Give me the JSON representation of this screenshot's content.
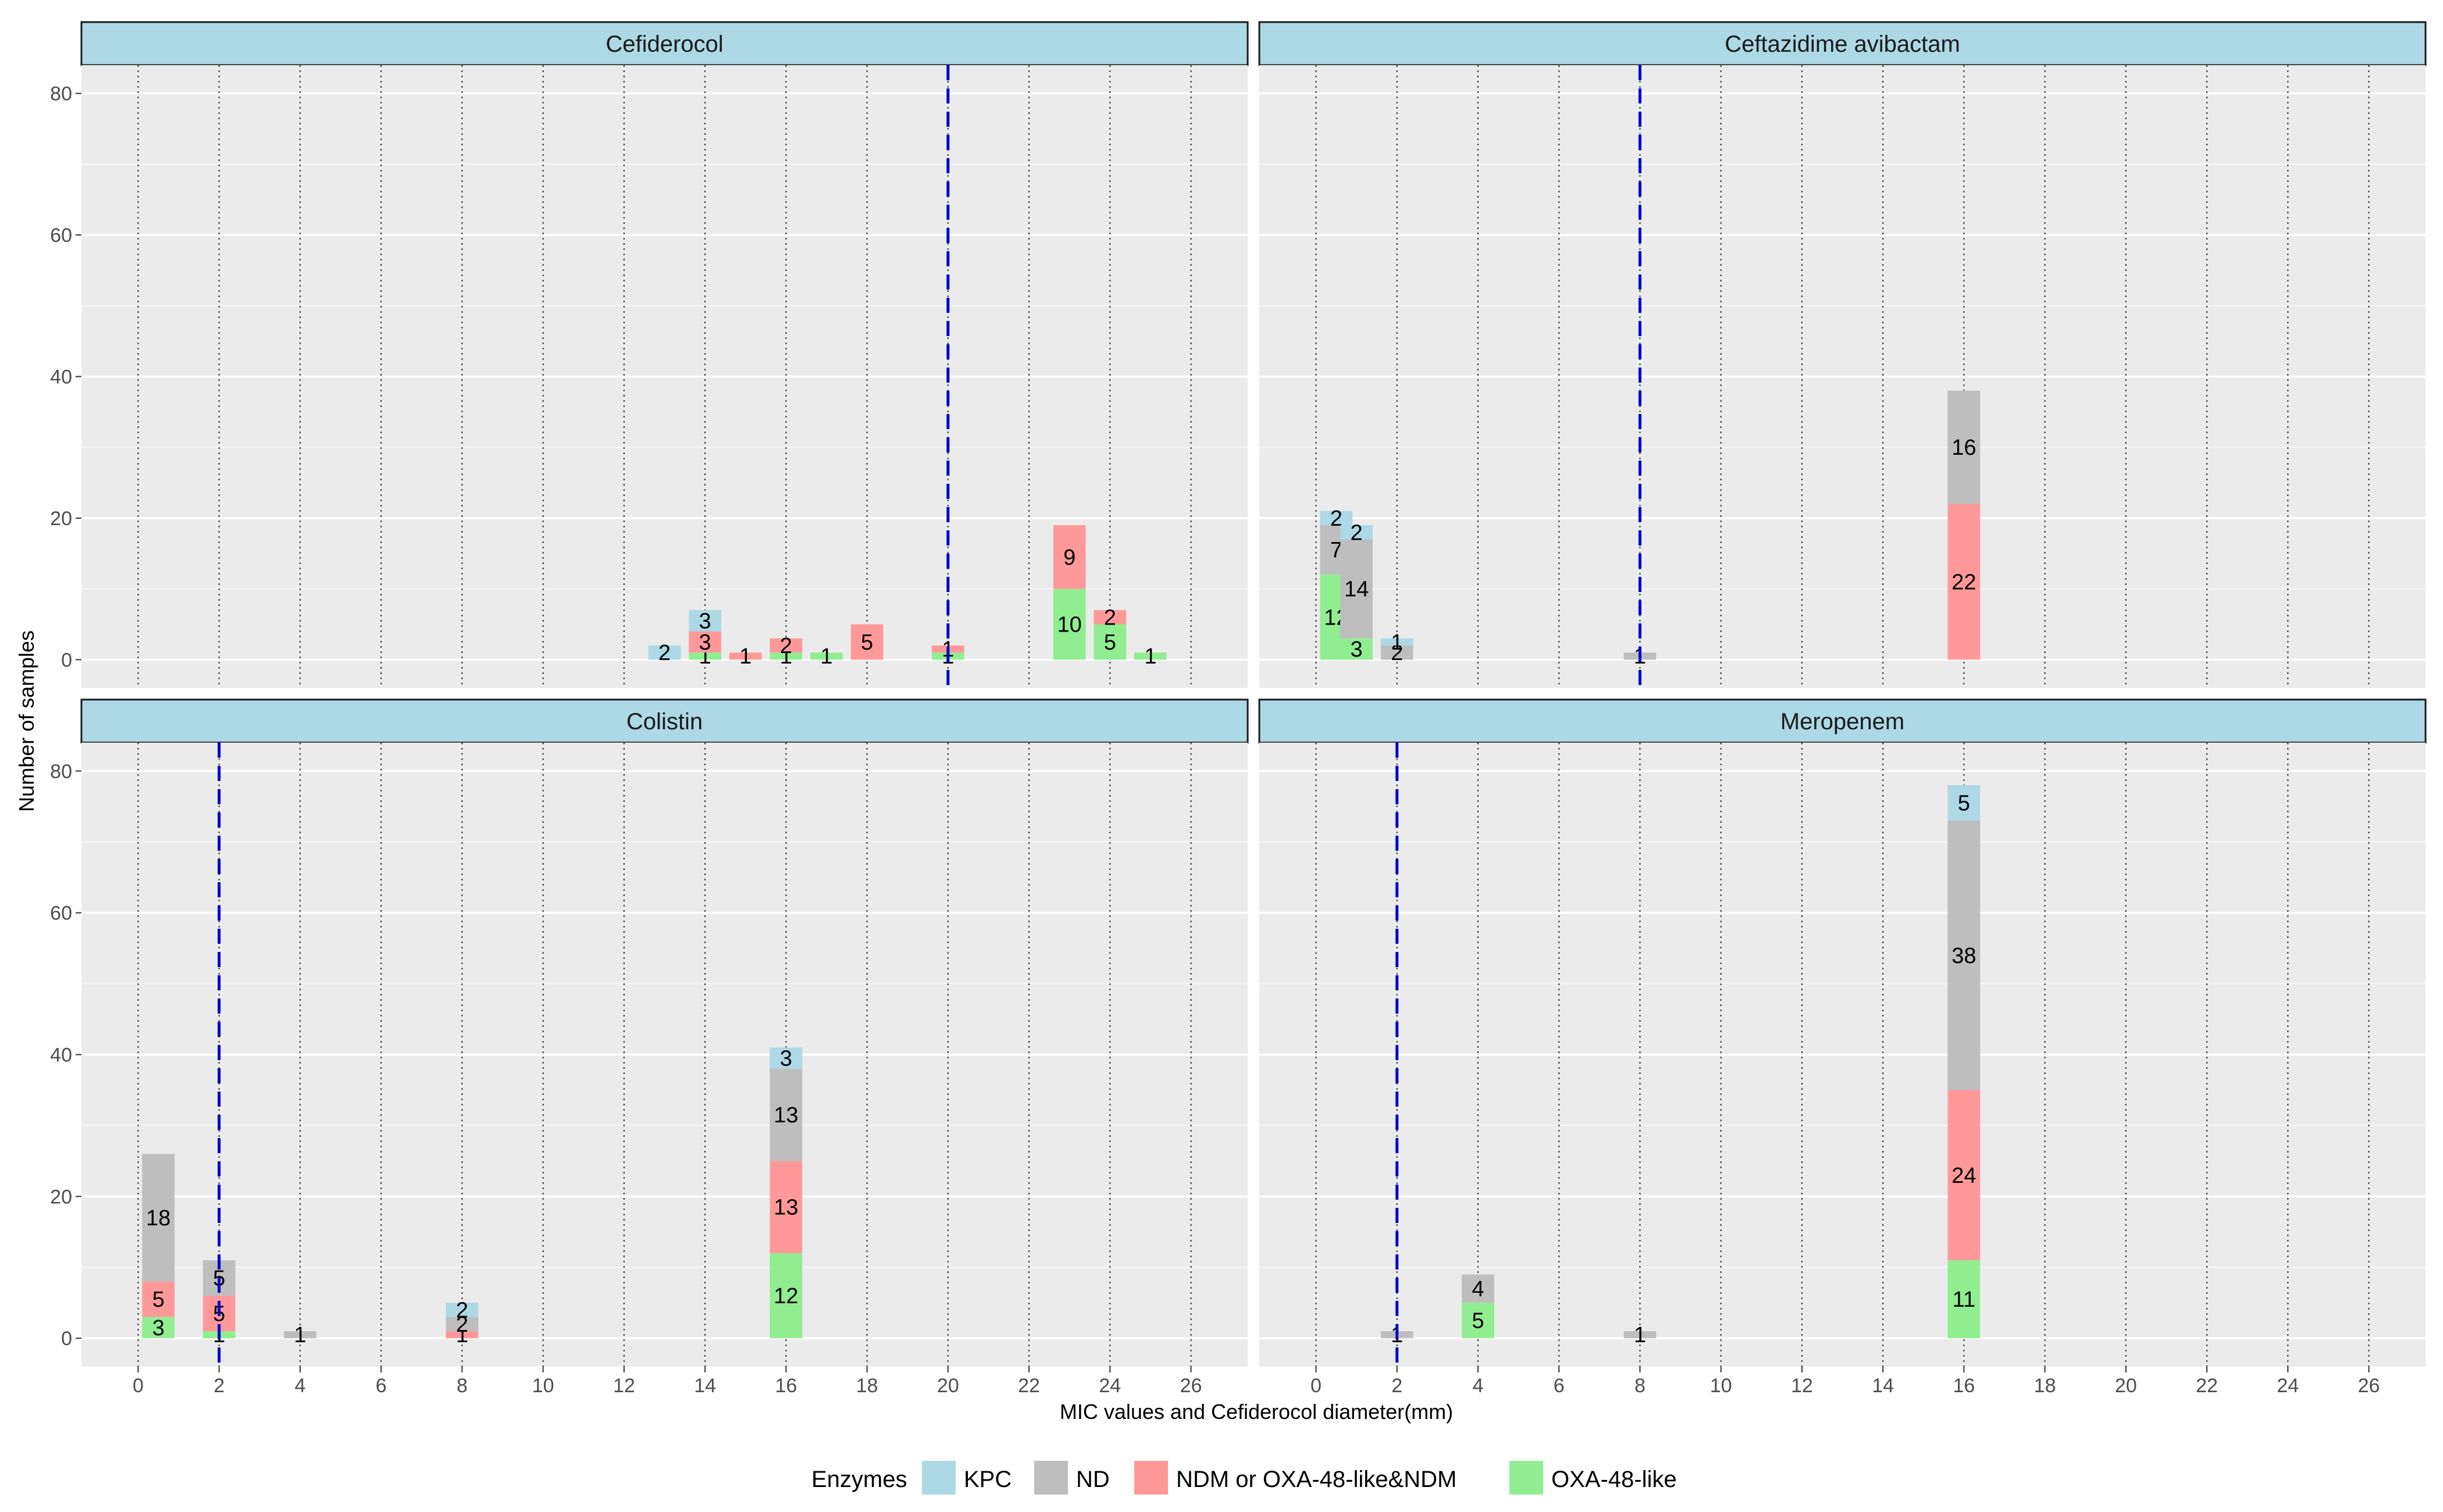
{
  "chart_data": {
    "type": "bar",
    "stacked": true,
    "xlabel": "MIC values and Cefiderocol diameter(mm)",
    "ylabel": "Number of samples",
    "xlim": [
      -1.4,
      27.4
    ],
    "ylim": [
      -4,
      84
    ],
    "x_ticks": [
      0,
      2,
      4,
      6,
      8,
      10,
      12,
      14,
      16,
      18,
      20,
      22,
      24,
      26
    ],
    "y_ticks": [
      0,
      20,
      40,
      60,
      80
    ],
    "bar_width": 0.8,
    "legend": {
      "title": "Enzymes",
      "position": "bottom",
      "items": [
        {
          "name": "KPC",
          "color": "#add8e6"
        },
        {
          "name": "ND",
          "color": "#bebebe"
        },
        {
          "name": "NDM or OXA-48-like&NDM",
          "color": "#ff9999"
        },
        {
          "name": "OXA-48-like",
          "color": "#90ee90"
        }
      ]
    },
    "stack_order": [
      "OXA-48-like",
      "NDM or OXA-48-like&NDM",
      "ND",
      "KPC"
    ],
    "facets": [
      {
        "title": "Cefiderocol",
        "cutoff": 20,
        "bars": [
          {
            "x": 13,
            "KPC": 2
          },
          {
            "x": 14,
            "OXA-48-like": 1,
            "NDM or OXA-48-like&NDM": 3,
            "KPC": 3
          },
          {
            "x": 15,
            "NDM or OXA-48-like&NDM": 1
          },
          {
            "x": 16,
            "OXA-48-like": 1,
            "NDM or OXA-48-like&NDM": 2
          },
          {
            "x": 17,
            "OXA-48-like": 1
          },
          {
            "x": 18,
            "NDM or OXA-48-like&NDM": 5
          },
          {
            "x": 20,
            "OXA-48-like": 1,
            "NDM or OXA-48-like&NDM": 1
          },
          {
            "x": 23,
            "OXA-48-like": 10,
            "NDM or OXA-48-like&NDM": 9
          },
          {
            "x": 24,
            "OXA-48-like": 5,
            "NDM or OXA-48-like&NDM": 2
          },
          {
            "x": 25,
            "OXA-48-like": 1
          }
        ]
      },
      {
        "title": "Ceftazidime avibactam",
        "cutoff": 8,
        "bars": [
          {
            "x": 0.5,
            "OXA-48-like": 12,
            "ND": 7,
            "KPC": 2
          },
          {
            "x": 1,
            "OXA-48-like": 3,
            "ND": 14,
            "KPC": 2
          },
          {
            "x": 2,
            "ND": 2,
            "KPC": 1
          },
          {
            "x": 8,
            "ND": 1
          },
          {
            "x": 16,
            "NDM or OXA-48-like&NDM": 22,
            "ND": 16
          }
        ]
      },
      {
        "title": "Colistin",
        "cutoff": 2,
        "bars": [
          {
            "x": 0.5,
            "OXA-48-like": 3,
            "NDM or OXA-48-like&NDM": 5,
            "ND": 18
          },
          {
            "x": 2,
            "OXA-48-like": 1,
            "NDM or OXA-48-like&NDM": 5,
            "ND": 5
          },
          {
            "x": 4,
            "ND": 1
          },
          {
            "x": 8,
            "NDM or OXA-48-like&NDM": 1,
            "ND": 2,
            "KPC": 2
          },
          {
            "x": 16,
            "OXA-48-like": 12,
            "NDM or OXA-48-like&NDM": 13,
            "ND": 13,
            "KPC": 3
          }
        ]
      },
      {
        "title": "Meropenem",
        "cutoff": 2,
        "bars": [
          {
            "x": 2,
            "ND": 1
          },
          {
            "x": 4,
            "OXA-48-like": 5,
            "ND": 4
          },
          {
            "x": 8,
            "ND": 1
          },
          {
            "x": 16,
            "OXA-48-like": 11,
            "NDM or OXA-48-like&NDM": 24,
            "ND": 38,
            "KPC": 5
          }
        ]
      }
    ]
  }
}
